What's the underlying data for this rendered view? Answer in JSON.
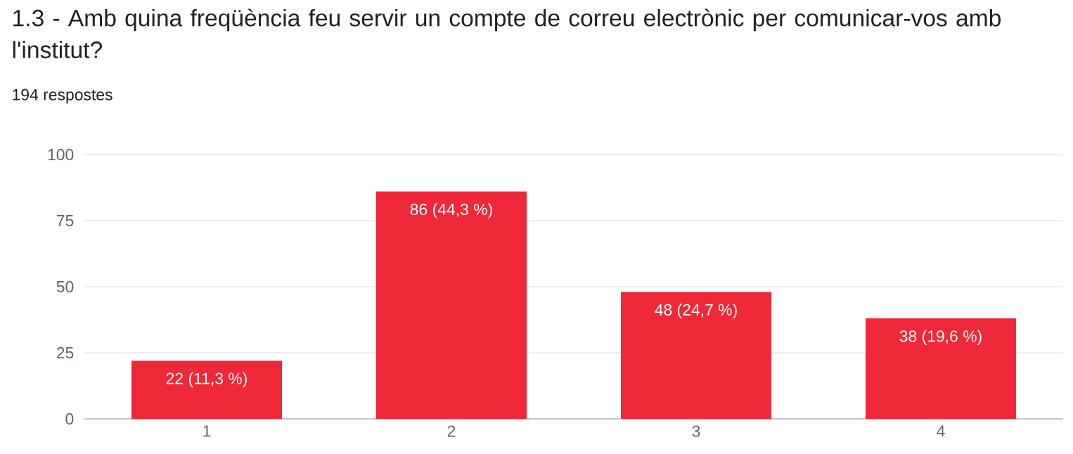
{
  "chart_data": {
    "type": "bar",
    "title": "1.3 - Amb quina freqüència feu servir un compte de correu electrònic per comunicar-vos amb l'institut?",
    "subtitle": "194 respostes",
    "categories": [
      "1",
      "2",
      "3",
      "4"
    ],
    "values": [
      22,
      86,
      48,
      38
    ],
    "value_labels": [
      "22 (11,3 %)",
      "86 (44,3 %)",
      "48 (24,7 %)",
      "38 (19,6 %)"
    ],
    "color": "#ee2838",
    "ylim": [
      0,
      100
    ],
    "yticks": [
      0,
      25,
      50,
      75,
      100
    ],
    "grid": "y"
  }
}
